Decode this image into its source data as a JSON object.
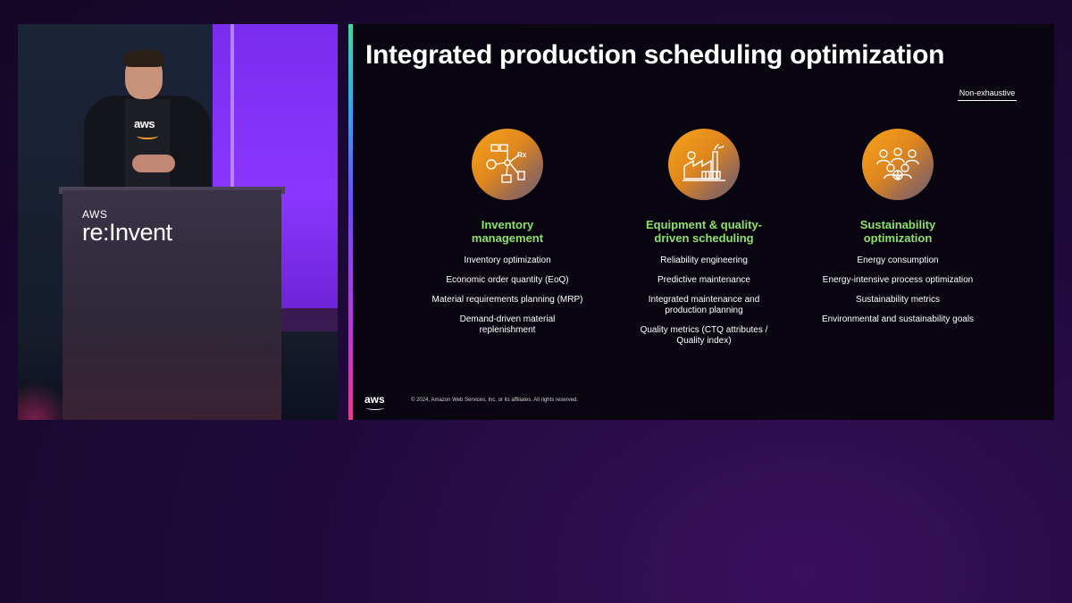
{
  "video": {
    "podium_brand_small": "AWS",
    "podium_brand_large": "re:Invent",
    "shirt_logo": "aws"
  },
  "slide": {
    "title": "Integrated production scheduling optimization",
    "badge": "Non-exhaustive",
    "columns": [
      {
        "icon": "workflow-network-icon",
        "heading_line1": "Inventory",
        "heading_line2": "management",
        "items": [
          "Inventory optimization",
          "Economic order quantity (EoQ)",
          "Material requirements planning (MRP)",
          "Demand-driven material replenishment"
        ]
      },
      {
        "icon": "factory-icon",
        "heading_line1": "Equipment & quality-",
        "heading_line2": "driven scheduling",
        "items": [
          "Reliability engineering",
          "Predictive maintenance",
          "Integrated maintenance and production planning",
          "Quality metrics (CTQ attributes / Quality index)"
        ]
      },
      {
        "icon": "people-group-icon",
        "heading_line1": "Sustainability",
        "heading_line2": "optimization",
        "items": [
          "Energy consumption",
          "Energy-intensive process optimization",
          "Sustainability metrics",
          "Environmental and sustainability goals"
        ]
      }
    ],
    "footer_logo": "aws",
    "copyright": "© 2024, Amazon Web Services, Inc. or its affiliates. All rights reserved."
  },
  "colors": {
    "accent_green": "#8fe06a",
    "icon_orange": "#f7a21c",
    "background_purple": "#1f0a3a"
  }
}
